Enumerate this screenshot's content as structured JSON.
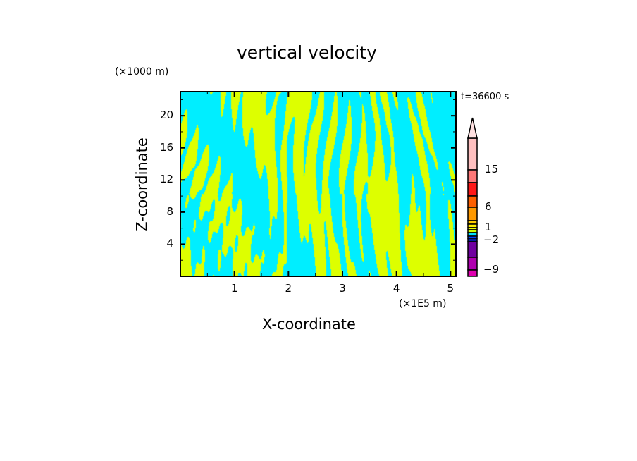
{
  "chart_data": {
    "type": "heatmap",
    "title": "vertical velocity",
    "xlabel": "X-coordinate",
    "ylabel": "Z-coordinate",
    "x_unit": "(×1E5 m)",
    "y_unit": "(×1000 m)",
    "time_label": "t=36600 s",
    "xlim": [
      0,
      5.1
    ],
    "ylim": [
      0,
      23
    ],
    "x_ticks": [
      1,
      2,
      3,
      4,
      5
    ],
    "y_ticks": [
      4,
      8,
      12,
      16,
      20
    ],
    "x_tick_labels": [
      "1",
      "2",
      "3",
      "4",
      "5"
    ],
    "y_tick_labels": [
      "4",
      "8",
      "12",
      "16",
      "20"
    ],
    "field_colors": {
      "positive": "#ddff00",
      "negative": "#00eeff"
    },
    "colorbar": {
      "labels": [
        "15",
        "6",
        "1",
        "−2",
        "−9"
      ],
      "label_values": [
        15,
        6,
        1,
        -2,
        -9
      ],
      "extend": "max",
      "colors_top_to_bottom": [
        "#ffc0c0",
        "#ff7878",
        "#ff1818",
        "#ff6000",
        "#ff9900",
        "#ffcc00",
        "#ffee00",
        "#eeff00",
        "#ccff00",
        "#00e0ff",
        "#0040ff",
        "#0020a0",
        "#7000a0",
        "#b000b0",
        "#e000b0"
      ],
      "extend_color": "#ffe0e0"
    }
  }
}
